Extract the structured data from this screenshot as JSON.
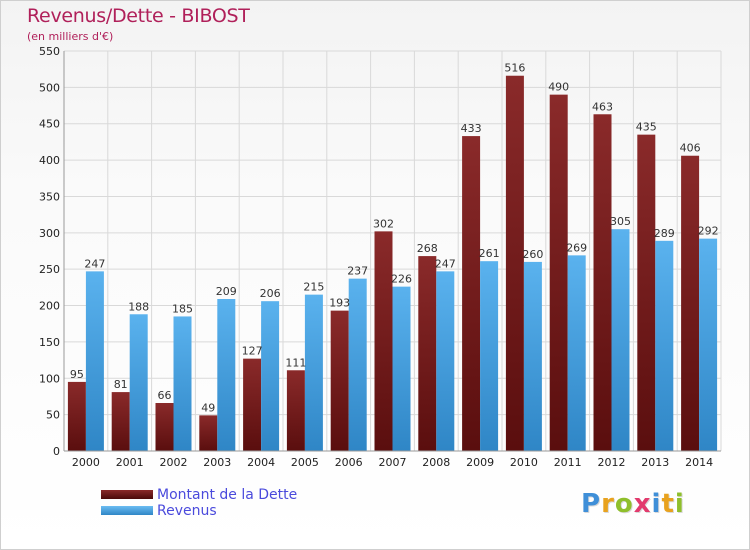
{
  "header": {
    "title": "Revenus/Dette - BIBOST",
    "subtitle": "(en milliers d'€)"
  },
  "colors": {
    "dette": "#7a1c1c",
    "revenus": "#4aa3e0",
    "grid": "#d9d9d9",
    "axis_text": "#222222"
  },
  "chart_data": {
    "type": "bar",
    "title": "Revenus/Dette - BIBOST",
    "subtitle": "(en milliers d'€)",
    "categories": [
      "2000",
      "2001",
      "2002",
      "2003",
      "2004",
      "2005",
      "2006",
      "2007",
      "2008",
      "2009",
      "2010",
      "2011",
      "2012",
      "2013",
      "2014"
    ],
    "series": [
      {
        "name": "Montant de la Dette",
        "color": "#7a1c1c",
        "values": [
          95,
          81,
          66,
          49,
          127,
          111,
          193,
          302,
          268,
          433,
          516,
          490,
          463,
          435,
          406
        ]
      },
      {
        "name": "Revenus",
        "color": "#4aa3e0",
        "values": [
          247,
          188,
          185,
          209,
          206,
          215,
          237,
          226,
          247,
          261,
          260,
          269,
          305,
          289,
          292
        ]
      }
    ],
    "ylim": [
      0,
      550
    ],
    "yticks": [
      0,
      50,
      100,
      150,
      200,
      250,
      300,
      350,
      400,
      450,
      500,
      550
    ],
    "grid": true,
    "legend": "bottom-left"
  },
  "legend": {
    "items": [
      {
        "label": "Montant de la Dette",
        "color": "#7a1c1c"
      },
      {
        "label": "Revenus",
        "color": "#4aa3e0"
      }
    ]
  },
  "logo": {
    "text": "Proxiti"
  }
}
